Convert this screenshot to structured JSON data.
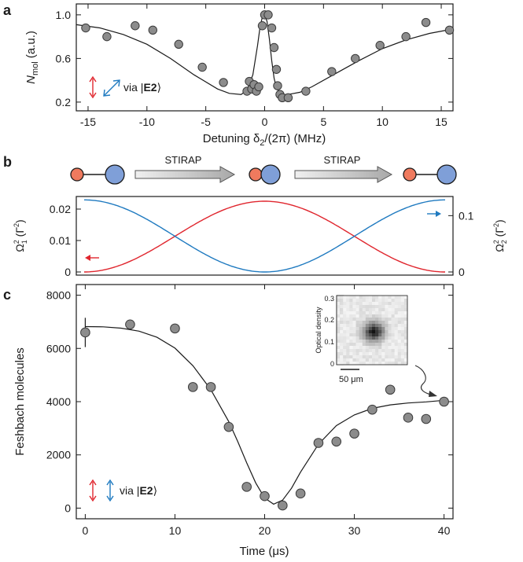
{
  "colors": {
    "point_fill": "#8c8c8c",
    "point_stroke": "#3a3a3a",
    "red": "#e0262e",
    "blue": "#1f7ac0",
    "fit": "#1a1a1a",
    "atom_red": "#ef7a5e",
    "atom_blue": "#7f9fd8"
  },
  "chart_data": [
    {
      "panel": "a",
      "type": "scatter",
      "xlabel_main": "Detuning δ",
      "xlabel_sub": "2",
      "xlabel_tail": "/(2π) (MHz)",
      "ylabel_main": "N",
      "ylabel_sub": "mol",
      "ylabel_tail": " (a.u.)",
      "xlim": [
        -16,
        16
      ],
      "ylim": [
        0.12,
        1.1
      ],
      "xticks": [
        -15,
        -10,
        -5,
        0,
        5,
        10,
        15
      ],
      "yticks": [
        0.2,
        0.6,
        1.0
      ],
      "ytick_labels": [
        "0.2",
        "0.6",
        "1.0"
      ],
      "legend_text": "via |",
      "legend_bold": "E2",
      "legend_tail": "⟩",
      "x": [
        -15.2,
        -13.4,
        -11,
        -9.5,
        -7.3,
        -5.3,
        -3.5,
        -1.5,
        -1.3,
        -1.1,
        -0.9,
        -0.7,
        -0.5,
        -0.2,
        0,
        0.3,
        0.6,
        0.8,
        1.0,
        1.1,
        1.3,
        1.5,
        2.0,
        3.5,
        5.7,
        7.7,
        9.8,
        12,
        13.7,
        15.7
      ],
      "y": [
        0.88,
        0.8,
        0.9,
        0.86,
        0.73,
        0.52,
        0.38,
        0.3,
        0.39,
        0.32,
        0.36,
        0.3,
        0.34,
        0.9,
        1.0,
        1.0,
        0.88,
        0.7,
        0.5,
        0.35,
        0.27,
        0.24,
        0.24,
        0.3,
        0.48,
        0.6,
        0.72,
        0.8,
        0.93,
        0.86
      ],
      "fit_x": [
        -16,
        -14,
        -12,
        -10,
        -8,
        -6,
        -4,
        -3,
        -2,
        -1.5,
        -1,
        -0.6,
        -0.4,
        -0.2,
        0,
        0.2,
        0.4,
        0.6,
        0.8,
        1.0,
        1.3,
        1.6,
        2,
        3,
        4,
        6,
        8,
        10,
        12,
        14,
        16
      ],
      "fit_y": [
        0.91,
        0.88,
        0.82,
        0.73,
        0.6,
        0.45,
        0.32,
        0.28,
        0.27,
        0.31,
        0.45,
        0.72,
        0.88,
        0.98,
        1.0,
        0.94,
        0.78,
        0.58,
        0.42,
        0.33,
        0.28,
        0.27,
        0.27,
        0.29,
        0.34,
        0.46,
        0.58,
        0.69,
        0.77,
        0.83,
        0.87
      ]
    },
    {
      "panel": "b",
      "type": "line",
      "left_ylabel_main": "Ω",
      "left_ylabel_sup": "2",
      "left_ylabel_sub": "1",
      "left_ylabel_tail": " (Γ",
      "left_ylabel_tail_sup": "2",
      "left_ylabel_close": ")",
      "right_ylabel_main": "Ω",
      "right_ylabel_sup": "2",
      "right_ylabel_sub": "2",
      "right_ylabel_tail": " (Γ",
      "right_ylabel_tail_sup": "2",
      "right_ylabel_close": ")",
      "xlim": [
        0,
        40
      ],
      "left_ylim": [
        -0.001,
        0.024
      ],
      "right_ylim": [
        -0.0056,
        0.134
      ],
      "left_yticks": [
        0,
        0.01,
        0.02
      ],
      "left_ytick_labels": [
        "0",
        "0.01",
        "0.02"
      ],
      "right_yticks": [
        0,
        0.1
      ],
      "right_ytick_labels": [
        "0",
        "0.1"
      ],
      "series": [
        {
          "axis": "left",
          "color": "#e0262e",
          "formula": "0.0225*sin^2(pi*t/40)"
        },
        {
          "axis": "right",
          "color": "#1f7ac0",
          "formula": "0.128*cos^2(pi*t/40)"
        }
      ],
      "stirap_label_1": "STIRAP",
      "stirap_label_2": "STIRAP"
    },
    {
      "panel": "c",
      "type": "scatter",
      "xlabel": "Time (μs)",
      "ylabel": "Feshbach molecules",
      "xlim": [
        -1,
        41
      ],
      "ylim": [
        -400,
        8400
      ],
      "xticks": [
        0,
        10,
        20,
        30,
        40
      ],
      "yticks": [
        0,
        2000,
        4000,
        6000,
        8000
      ],
      "legend_text": "via |",
      "legend_bold": "E2",
      "legend_tail": "⟩",
      "x": [
        0,
        5,
        10,
        12,
        14,
        16,
        18,
        20,
        22,
        24,
        26,
        28,
        30,
        32,
        34,
        36,
        38,
        40
      ],
      "y": [
        6600,
        6900,
        6750,
        4550,
        4550,
        3050,
        800,
        450,
        100,
        550,
        2450,
        2500,
        2800,
        3700,
        4450,
        3400,
        3350,
        4000
      ],
      "error_bar": {
        "x": 0,
        "low": 6050,
        "high": 7150
      },
      "fit_x": [
        0,
        2,
        4,
        6,
        8,
        10,
        12,
        14,
        16,
        17,
        18,
        19,
        20,
        21,
        22,
        23,
        24,
        26,
        28,
        30,
        32,
        34,
        36,
        38,
        40
      ],
      "fit_y": [
        6820,
        6810,
        6760,
        6650,
        6420,
        6010,
        5350,
        4450,
        3250,
        2500,
        1700,
        950,
        380,
        150,
        300,
        750,
        1350,
        2400,
        3100,
        3500,
        3750,
        3880,
        3950,
        3990,
        4050
      ],
      "inset": {
        "colorbar_label": "Optical density",
        "colorbar_ticks": [
          "0.3",
          "0.2",
          "0.1",
          "0"
        ],
        "scale_label": "50 μm"
      }
    }
  ],
  "panel_labels": [
    "a",
    "b",
    "c"
  ]
}
